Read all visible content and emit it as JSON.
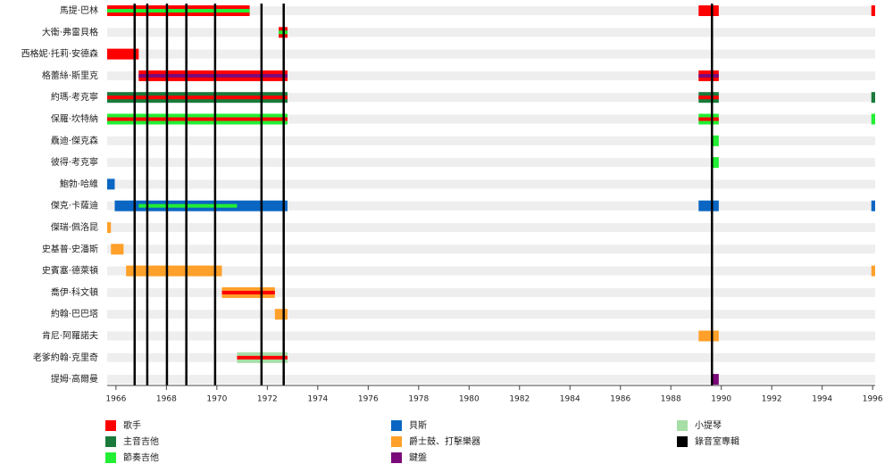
{
  "chart_data": {
    "type": "timeline",
    "xlim": [
      1965.65,
      1996.1
    ],
    "xticks": [
      1966,
      1968,
      1970,
      1972,
      1974,
      1976,
      1978,
      1980,
      1982,
      1984,
      1986,
      1988,
      1990,
      1992,
      1994,
      1996
    ],
    "roles": [
      {
        "name": "歌手",
        "color": "#ff0000"
      },
      {
        "name": "主音吉他",
        "color": "#1a7a3a"
      },
      {
        "name": "節奏吉他",
        "color": "#22ee33"
      },
      {
        "name": "貝斯",
        "color": "#0a66c2"
      },
      {
        "name": "爵士鼓、打擊樂器",
        "color": "#ffa02a"
      },
      {
        "name": "鍵盤",
        "color": "#7a0a7a"
      },
      {
        "name": "小提琴",
        "color": "#a6dea6"
      }
    ],
    "albums": {
      "name": "錄音室專輯",
      "color": "#000000",
      "x": [
        1966.74,
        1967.24,
        1968.02,
        1968.79,
        1969.93,
        1971.77,
        1972.65,
        1989.63
      ]
    },
    "members": [
      {
        "name": "馬提·巴林",
        "spans": [
          {
            "start": 1965.65,
            "end": 1971.3,
            "role": 0,
            "stripe": 2
          },
          {
            "start": 1989.1,
            "end": 1989.9,
            "role": 0
          },
          {
            "start": 1995.95,
            "end": 1996.1,
            "role": 0
          }
        ]
      },
      {
        "name": "大衛·弗雷貝格",
        "spans": [
          {
            "start": 1972.45,
            "end": 1972.8,
            "role": 0,
            "stripe": 2
          }
        ]
      },
      {
        "name": "西格妮·托莉·安德森",
        "spans": [
          {
            "start": 1965.65,
            "end": 1966.9,
            "role": 0
          }
        ]
      },
      {
        "name": "格蕾絲·斯里克",
        "spans": [
          {
            "start": 1966.9,
            "end": 1972.8,
            "role": 0,
            "stripe": 5
          },
          {
            "start": 1989.1,
            "end": 1989.9,
            "role": 0,
            "stripe": 5
          }
        ]
      },
      {
        "name": "約瑪·考克寧",
        "spans": [
          {
            "start": 1965.65,
            "end": 1972.8,
            "role": 1,
            "stripe": 0
          },
          {
            "start": 1989.1,
            "end": 1989.9,
            "role": 1,
            "stripe": 0
          },
          {
            "start": 1995.95,
            "end": 1996.1,
            "role": 1
          }
        ]
      },
      {
        "name": "保羅·坎特納",
        "spans": [
          {
            "start": 1965.65,
            "end": 1972.8,
            "role": 2,
            "stripe": 0
          },
          {
            "start": 1989.1,
            "end": 1989.9,
            "role": 2,
            "stripe": 0
          },
          {
            "start": 1995.95,
            "end": 1996.1,
            "role": 2
          }
        ]
      },
      {
        "name": "驫迪·傑克森",
        "spans": [
          {
            "start": 1989.6,
            "end": 1989.9,
            "role": 2
          }
        ]
      },
      {
        "name": "彼得·考克寧",
        "spans": [
          {
            "start": 1989.6,
            "end": 1989.9,
            "role": 2
          }
        ]
      },
      {
        "name": "鮑勃·哈維",
        "spans": [
          {
            "start": 1965.65,
            "end": 1965.95,
            "role": 3
          }
        ]
      },
      {
        "name": "傑克·卡薩迪",
        "spans": [
          {
            "start": 1965.95,
            "end": 1972.8,
            "role": 3
          },
          {
            "start": 1966.9,
            "end": 1970.8,
            "role": 3,
            "stripe": 2
          },
          {
            "start": 1989.1,
            "end": 1989.9,
            "role": 3
          },
          {
            "start": 1995.95,
            "end": 1996.1,
            "role": 3
          }
        ]
      },
      {
        "name": "傑瑞·佩洛昆",
        "spans": [
          {
            "start": 1965.65,
            "end": 1965.8,
            "role": 4
          }
        ]
      },
      {
        "name": "史基普·史潘斯",
        "spans": [
          {
            "start": 1965.8,
            "end": 1966.3,
            "role": 4
          }
        ]
      },
      {
        "name": "史賓塞·德萊頓",
        "spans": [
          {
            "start": 1966.4,
            "end": 1970.2,
            "role": 4
          },
          {
            "start": 1995.95,
            "end": 1996.1,
            "role": 4
          }
        ]
      },
      {
        "name": "喬伊·科文頓",
        "spans": [
          {
            "start": 1970.2,
            "end": 1972.3,
            "role": 4,
            "stripe": 0
          }
        ]
      },
      {
        "name": "約翰·巴巴塔",
        "spans": [
          {
            "start": 1972.3,
            "end": 1972.8,
            "role": 4
          }
        ]
      },
      {
        "name": "肯尼·阿羅諾夫",
        "spans": [
          {
            "start": 1989.1,
            "end": 1989.9,
            "role": 4
          }
        ]
      },
      {
        "name": "老爹約翰·克里奇",
        "spans": [
          {
            "start": 1970.8,
            "end": 1972.8,
            "role": 6,
            "stripe": 0
          }
        ]
      },
      {
        "name": "提姆·高爾曼",
        "spans": [
          {
            "start": 1989.6,
            "end": 1989.9,
            "role": 5
          }
        ]
      }
    ]
  }
}
